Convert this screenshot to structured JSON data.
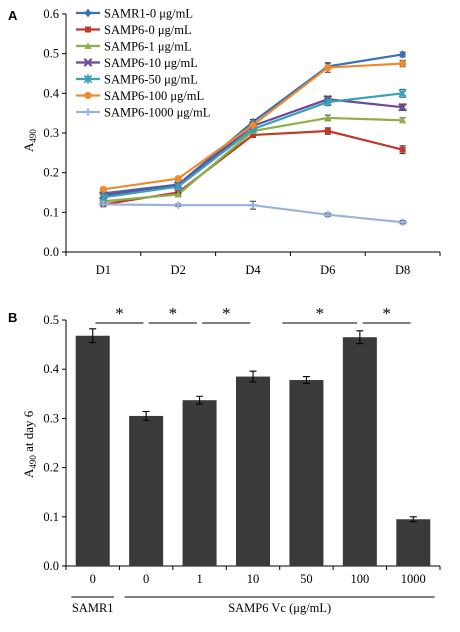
{
  "chart_data": [
    {
      "panel": "A",
      "type": "line",
      "categories": [
        "D1",
        "D2",
        "D4",
        "D6",
        "D8"
      ],
      "ylabel": "A490",
      "ylim": [
        0,
        0.6
      ],
      "yticks": [
        "0.0",
        "0.1",
        "0.2",
        "0.3",
        "0.4",
        "0.5",
        "0.6"
      ],
      "legend_position": "top-left",
      "series": [
        {
          "name": "SAMR1-0 μg/mL",
          "color": "#3a70b5",
          "marker": "diamond",
          "values": [
            0.148,
            0.17,
            0.328,
            0.468,
            0.498
          ],
          "errors": [
            0.004,
            0.004,
            0.006,
            0.008,
            0.006
          ]
        },
        {
          "name": "SAMP6-0 μg/mL",
          "color": "#c0392b",
          "marker": "square",
          "values": [
            0.12,
            0.15,
            0.295,
            0.305,
            0.258
          ],
          "errors": [
            0.003,
            0.004,
            0.006,
            0.008,
            0.01
          ]
        },
        {
          "name": "SAMP6-1 μg/mL",
          "color": "#8bb04a",
          "marker": "triangle",
          "values": [
            0.128,
            0.145,
            0.305,
            0.338,
            0.332
          ],
          "errors": [
            0.003,
            0.004,
            0.006,
            0.007,
            0.006
          ]
        },
        {
          "name": "SAMP6-10 μg/mL",
          "color": "#6b4a9b",
          "marker": "x",
          "values": [
            0.143,
            0.168,
            0.318,
            0.385,
            0.365
          ],
          "errors": [
            0.004,
            0.004,
            0.006,
            0.008,
            0.008
          ]
        },
        {
          "name": "SAMP6-50 μg/mL",
          "color": "#3aa0b7",
          "marker": "star",
          "values": [
            0.138,
            0.165,
            0.31,
            0.378,
            0.4
          ],
          "errors": [
            0.004,
            0.004,
            0.006,
            0.008,
            0.01
          ]
        },
        {
          "name": "SAMP6-100 μg/mL",
          "color": "#ee8a2a",
          "marker": "circle",
          "values": [
            0.158,
            0.185,
            0.32,
            0.465,
            0.475
          ],
          "errors": [
            0.004,
            0.004,
            0.006,
            0.012,
            0.008
          ]
        },
        {
          "name": "SAMP6-1000 μg/mL",
          "color": "#9ab3dc",
          "marker": "plus",
          "values": [
            0.12,
            0.118,
            0.118,
            0.094,
            0.075
          ],
          "errors": [
            0.003,
            0.003,
            0.01,
            0.004,
            0.004
          ]
        }
      ]
    },
    {
      "panel": "B",
      "type": "bar",
      "categories": [
        "0",
        "0",
        "1",
        "10",
        "50",
        "100",
        "1000"
      ],
      "values": [
        0.468,
        0.305,
        0.337,
        0.385,
        0.378,
        0.465,
        0.095
      ],
      "errors": [
        0.014,
        0.009,
        0.008,
        0.011,
        0.007,
        0.013,
        0.005
      ],
      "bar_color": "#3a3a3a",
      "ylabel": "A490 at day 6",
      "ylim": [
        0,
        0.5
      ],
      "yticks": [
        "0.0",
        "0.1",
        "0.2",
        "0.3",
        "0.4",
        "0.5"
      ],
      "significance": [
        "*",
        "*",
        "*",
        "*",
        "*"
      ],
      "group_labels": {
        "control": "SAMR1",
        "treated": "SAMP6  Vc (μg/mL)"
      }
    }
  ],
  "labels": {
    "panel_a": "A",
    "panel_b": "B",
    "a_ylabel_main": "A",
    "a_ylabel_sub": "490",
    "b_ylabel_main": "A",
    "b_ylabel_sub": "490",
    "b_ylabel_rest": " at day 6"
  }
}
